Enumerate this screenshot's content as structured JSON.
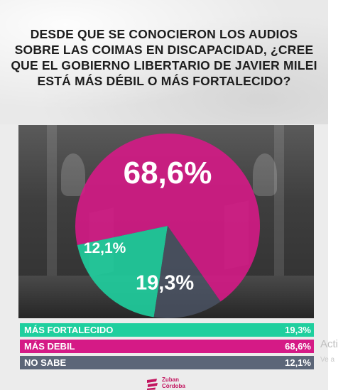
{
  "title": "DESDE QUE SE CONOCIERON LOS AUDIOS SOBRE LAS COIMAS EN DISCAPACIDAD, ¿CREE QUE EL GOBIERNO LIBERTARIO DE JAVIER MILEI ESTÁ MÁS DÉBIL O MÁS FORTALECIDO?",
  "chart_data": {
    "type": "pie",
    "title": "DESDE QUE SE CONOCIERON LOS AUDIOS SOBRE LAS COIMAS EN DISCAPACIDAD, ¿CREE QUE EL GOBIERNO LIBERTARIO DE JAVIER MILEI ESTÁ MÁS DÉBIL O MÁS FORTALECIDO?",
    "slices": [
      {
        "name": "MÁS DEBIL",
        "value": 68.6,
        "label": "68,6%",
        "color": "#d51a86"
      },
      {
        "name": "MÁS FORTALECIDO",
        "value": 19.3,
        "label": "19,3%",
        "color": "#1fcf9e"
      },
      {
        "name": "NO SABE",
        "value": 12.1,
        "label": "12,1%",
        "color": "#4b5566"
      }
    ],
    "legend": [
      {
        "label": "MÁS FORTALECIDO",
        "value": "19,3%",
        "color": "#1fcf9e"
      },
      {
        "label": "MÁS DEBIL",
        "value": "68,6%",
        "color": "#d51a86"
      },
      {
        "label": "NO SABE",
        "value": "12,1%",
        "color": "#5c6678"
      }
    ],
    "legend_position": "bottom"
  },
  "logo": {
    "line1": "Zuban",
    "line2": "Córdoba",
    "color": "#c2155f"
  },
  "watermark": {
    "text": "Acti",
    "sub": "Ve a"
  }
}
